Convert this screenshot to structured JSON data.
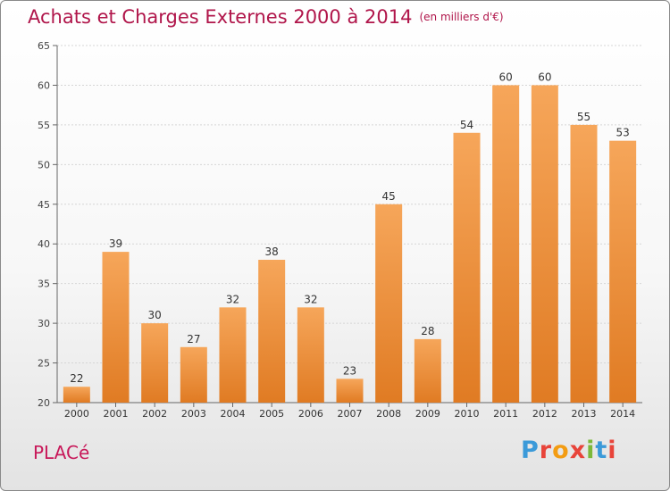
{
  "title": "Achats et Charges Externes 2000 à 2014",
  "subtitle": "(en milliers d'€)",
  "commune": "PLACé",
  "logo": "Proxiti",
  "colors": {
    "bar_light": "#f6a65a",
    "bar_dark": "#e07b23",
    "title": "#b0154a",
    "commune": "#c8195a",
    "logo_letters": [
      "#3b9ad9",
      "#e8443a",
      "#f39c12",
      "#e8443a",
      "#7cb83a",
      "#3b9ad9",
      "#e8443a"
    ]
  },
  "chart_data": {
    "type": "bar",
    "title": "Achats et Charges Externes 2000 à 2014",
    "subtitle": "(en milliers d'€)",
    "xlabel": "",
    "ylabel": "",
    "categories": [
      "2000",
      "2001",
      "2002",
      "2003",
      "2004",
      "2005",
      "2006",
      "2007",
      "2008",
      "2009",
      "2010",
      "2011",
      "2012",
      "2013",
      "2014"
    ],
    "values": [
      22,
      39,
      30,
      27,
      32,
      38,
      32,
      23,
      45,
      28,
      54,
      60,
      60,
      55,
      53
    ],
    "ylim": [
      20,
      65
    ],
    "yticks": [
      20,
      25,
      30,
      35,
      40,
      45,
      50,
      55,
      60,
      65
    ],
    "grid": true,
    "legend": "none"
  }
}
